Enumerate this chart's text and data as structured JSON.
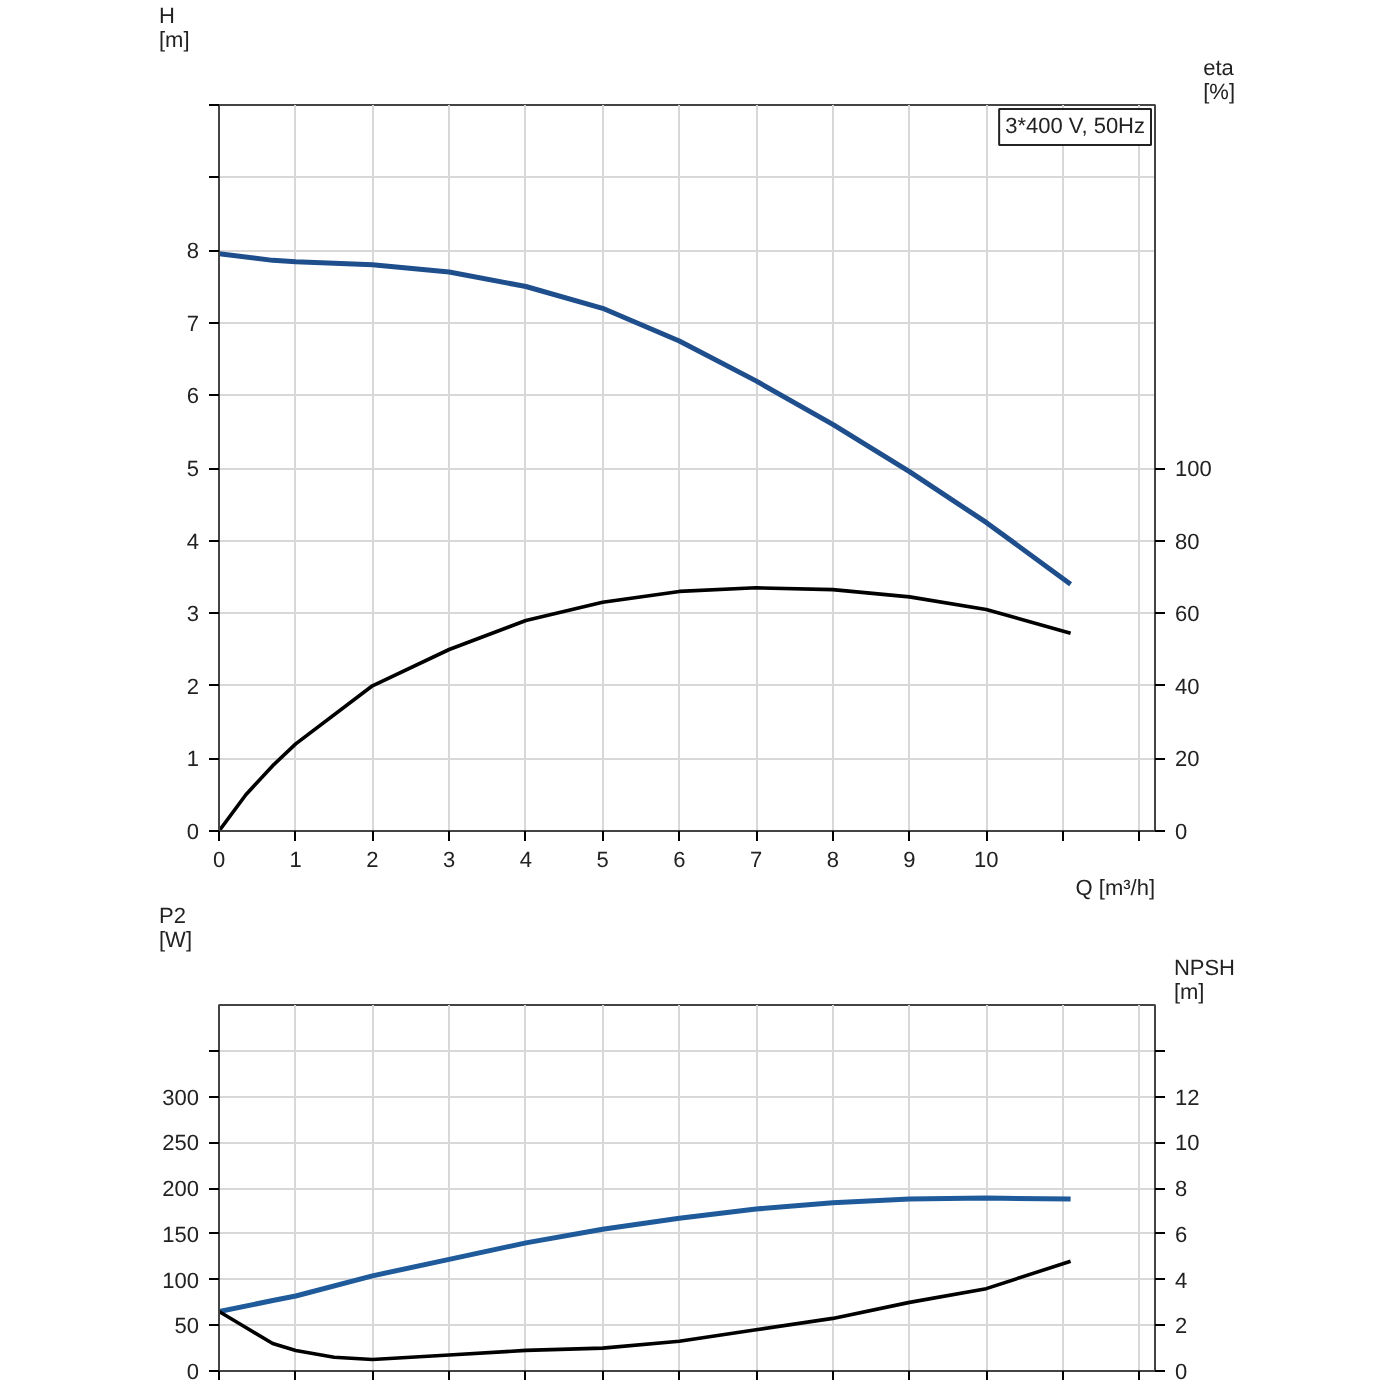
{
  "chart_data": [
    {
      "type": "line",
      "xlabel": "Q [m³/h]",
      "ylabel": "H [m]",
      "y2label": "eta [%]",
      "annotations": [
        "3*400 V, 50Hz"
      ],
      "xlim": [
        0,
        12.2
      ],
      "xticks": [
        0,
        1,
        2,
        3,
        4,
        5,
        6,
        7,
        8,
        9,
        10,
        {
          "value": 11,
          "label": null
        },
        {
          "value": 12,
          "label": null
        }
      ],
      "ylim": [
        0,
        10
      ],
      "yticks": [
        0,
        1,
        2,
        3,
        4,
        5,
        6,
        7,
        8,
        {
          "value": 9,
          "label": null
        },
        {
          "value": 10,
          "label": null
        }
      ],
      "y2lim": [
        0,
        200
      ],
      "y2ticks": [
        0,
        20,
        40,
        60,
        80,
        100
      ],
      "grid": true,
      "series": [
        {
          "color": "#1f4e8c",
          "x": [
            0,
            0.7,
            1,
            2,
            3,
            4,
            5,
            6,
            7,
            8,
            9,
            10,
            11.1
          ],
          "values": [
            7.95,
            7.86,
            7.84,
            7.8,
            7.7,
            7.5,
            7.2,
            6.75,
            6.2,
            5.6,
            4.95,
            4.25,
            3.4
          ]
        },
        {
          "color": "#000000",
          "axis": "y2",
          "x": [
            0,
            0.35,
            0.7,
            1,
            2,
            3,
            4,
            5,
            6,
            7,
            8,
            9,
            10,
            11.1
          ],
          "values": [
            0,
            10,
            18,
            24,
            40,
            50,
            58,
            63,
            66,
            67,
            66.5,
            64.5,
            61,
            54.5
          ]
        }
      ]
    },
    {
      "type": "line",
      "ylabel": "P2 [W]",
      "y2label": "NPSH [m]",
      "tick_labels": "y",
      "xlim": [
        0,
        12.2
      ],
      "xticks": [
        0,
        1,
        2,
        3,
        4,
        5,
        6,
        7,
        8,
        9,
        10,
        11,
        12
      ],
      "ylim": [
        0,
        400
      ],
      "yticks": [
        0,
        50,
        100,
        150,
        200,
        250,
        300,
        {
          "value": 350,
          "label": null
        }
      ],
      "y2lim": [
        0,
        16
      ],
      "y2ticks": [
        0,
        2,
        4,
        6,
        8,
        10,
        12,
        {
          "value": 14,
          "label": null
        }
      ],
      "grid": true,
      "series": [
        {
          "color": "#1f5a9a",
          "x": [
            0,
            0.7,
            1,
            2,
            3,
            4,
            5,
            6,
            7,
            8,
            9,
            10,
            11.1
          ],
          "values": [
            65,
            77,
            82,
            104,
            122,
            140,
            155,
            167,
            177,
            184,
            188,
            189,
            188
          ]
        },
        {
          "color": "#000000",
          "axis": "y2",
          "x": [
            0,
            0.35,
            0.7,
            1,
            1.5,
            2,
            3,
            4,
            5,
            6,
            7,
            8,
            9,
            10,
            11.1
          ],
          "values": [
            2.6,
            1.9,
            1.2,
            0.9,
            0.6,
            0.5,
            0.7,
            0.9,
            1.0,
            1.3,
            1.8,
            2.3,
            3.0,
            3.6,
            4.8
          ]
        }
      ]
    }
  ]
}
